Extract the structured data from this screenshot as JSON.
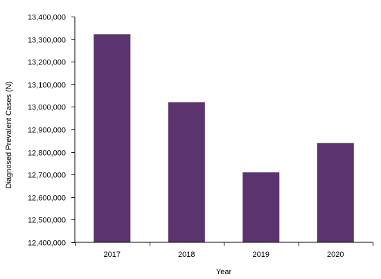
{
  "chart_data": {
    "type": "bar",
    "title": "",
    "xlabel": "Year",
    "ylabel": "Diagnosed Prevalent Cases (N)",
    "categories": [
      "2017",
      "2018",
      "2019",
      "2020"
    ],
    "values": [
      13322000,
      13021000,
      12710000,
      12840000
    ],
    "ylim": [
      12400000,
      13400000
    ],
    "yticks": [
      12400000,
      12500000,
      12600000,
      12700000,
      12800000,
      12900000,
      13000000,
      13100000,
      13200000,
      13300000,
      13400000
    ],
    "ytick_labels": [
      "12,400,000",
      "12,500,000",
      "12,600,000",
      "12,700,000",
      "12,800,000",
      "12,900,000",
      "13,000,000",
      "13,100,000",
      "13,200,000",
      "13,300,000",
      "13,400,000"
    ],
    "grid": false,
    "legend": "none",
    "bar_color": "#5b336e"
  }
}
